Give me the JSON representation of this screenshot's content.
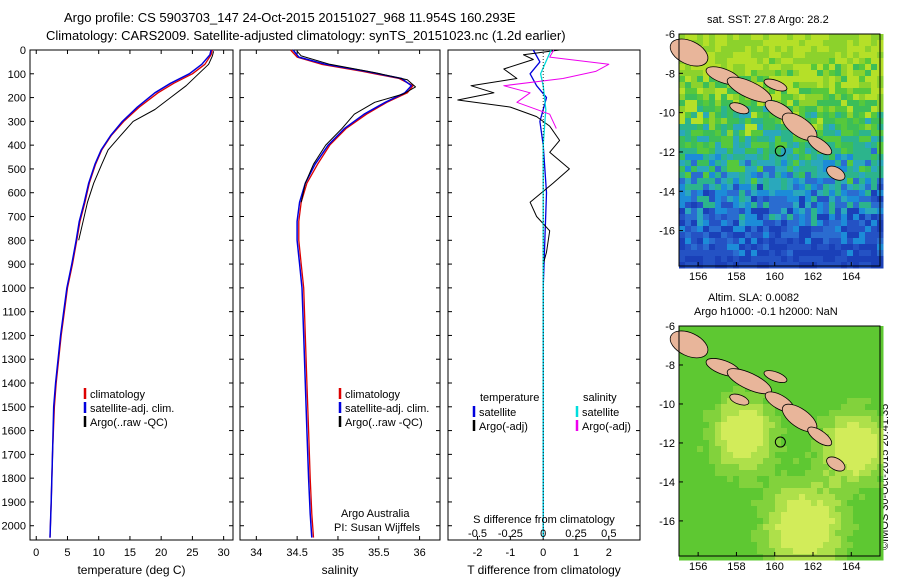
{
  "header": {
    "title_line1": "Argo profile: CS 5903703_147 24-Oct-2015 20151027_968 11.954S 160.293E",
    "title_line2": "Climatology: CARS2009. Satellite-adjusted climatology: synTS_20151023.nc (1.2d earlier)"
  },
  "colors": {
    "climatology": "#dd0000",
    "satellite": "#0000dd",
    "argo": "#000000",
    "satellite_salinity": "#00dddd",
    "argo_salinity_diff": "#ee00ee",
    "land": "#e8b59a"
  },
  "chart_data": [
    {
      "id": "temperature",
      "type": "line",
      "xlabel": "temperature (deg C)",
      "ylabel": "",
      "xlim": [
        -1,
        31.5
      ],
      "ylim": [
        2060,
        0
      ],
      "xticks": [
        0,
        5,
        10,
        15,
        20,
        25,
        30
      ],
      "xtick_labels": [
        "0",
        "5",
        "10",
        "15",
        "20",
        "25",
        "30"
      ],
      "yticks": [
        0,
        100,
        200,
        300,
        400,
        500,
        600,
        700,
        800,
        900,
        1000,
        1100,
        1200,
        1300,
        1400,
        1500,
        1600,
        1700,
        1800,
        1900,
        2000
      ],
      "legend": [
        "climatology",
        "satellite-adj. clim.",
        "Argo(..raw -QC)"
      ],
      "series": [
        {
          "name": "climatology",
          "color": "#dd0000",
          "width": 1.3,
          "x": [
            28.2,
            28.0,
            27.0,
            25.0,
            22.0,
            19.5,
            16.5,
            14.0,
            12.0,
            10.5,
            9.5,
            8.5,
            7.8,
            7.0,
            6.5,
            5.8,
            5.0,
            4.5,
            4.0,
            3.6,
            3.2,
            2.9,
            2.6,
            2.4,
            2.2
          ],
          "y": [
            0,
            20,
            60,
            100,
            140,
            180,
            240,
            300,
            360,
            420,
            480,
            560,
            640,
            720,
            800,
            900,
            1000,
            1100,
            1200,
            1300,
            1400,
            1500,
            1700,
            1900,
            2050
          ]
        },
        {
          "name": "satellite-adj. clim.",
          "color": "#0000dd",
          "width": 1.5,
          "x": [
            28.0,
            27.8,
            26.5,
            24.5,
            21.5,
            19.0,
            16.2,
            13.8,
            11.9,
            10.4,
            9.4,
            8.4,
            7.7,
            6.9,
            6.4,
            5.7,
            4.9,
            4.4,
            3.9,
            3.5,
            3.1,
            2.8,
            2.6,
            2.4,
            2.2
          ],
          "y": [
            0,
            20,
            60,
            100,
            140,
            180,
            240,
            300,
            360,
            420,
            480,
            560,
            640,
            720,
            800,
            900,
            1000,
            1100,
            1200,
            1300,
            1400,
            1500,
            1700,
            1900,
            2050
          ]
        },
        {
          "name": "Argo(..raw -QC)",
          "color": "#000000",
          "width": 1.0,
          "x": [
            28.4,
            28.2,
            27.6,
            26.0,
            24.0,
            21.5,
            19.0,
            15.5,
            13.5,
            11.5,
            10.5,
            9.2,
            8.2,
            7.5,
            6.8
          ],
          "y": [
            5,
            25,
            60,
            100,
            150,
            200,
            250,
            300,
            360,
            420,
            480,
            560,
            640,
            720,
            800
          ]
        }
      ],
      "legend_labels": [
        "climatology",
        "satellite-adj. clim.",
        "Argo(..raw -QC)"
      ]
    },
    {
      "id": "salinity",
      "type": "line",
      "xlabel": "salinity",
      "xlim": [
        33.8,
        36.25
      ],
      "ylim": [
        2060,
        0
      ],
      "xticks": [
        34,
        34.5,
        35,
        35.5,
        36
      ],
      "xtick_labels": [
        "34",
        "34.5",
        "35",
        "35.5",
        "36"
      ],
      "annotation_line1": "Argo Australia",
      "annotation_line2": "PI: Susan Wijffels",
      "legend_labels": [
        "climatology",
        "satellite-adj. clim.",
        "Argo(..raw -QC)"
      ],
      "series": [
        {
          "name": "climatology",
          "color": "#dd0000",
          "width": 1.3,
          "x": [
            34.42,
            34.5,
            34.8,
            35.3,
            35.75,
            35.92,
            35.85,
            35.6,
            35.35,
            35.1,
            34.9,
            34.75,
            34.62,
            34.55,
            34.52,
            34.52,
            34.55,
            34.58,
            34.6,
            34.62,
            34.64,
            34.66,
            34.68,
            34.7
          ],
          "y": [
            0,
            30,
            60,
            90,
            120,
            150,
            180,
            220,
            270,
            330,
            400,
            480,
            560,
            640,
            720,
            800,
            900,
            1000,
            1200,
            1400,
            1600,
            1800,
            1950,
            2050
          ]
        },
        {
          "name": "satellite-adj. clim.",
          "color": "#0000dd",
          "width": 1.5,
          "x": [
            34.45,
            34.52,
            34.85,
            35.35,
            35.78,
            35.9,
            35.82,
            35.58,
            35.32,
            35.08,
            34.88,
            34.72,
            34.6,
            34.53,
            34.5,
            34.5,
            34.53,
            34.56,
            34.58,
            34.6,
            34.62,
            34.64,
            34.66,
            34.68
          ],
          "y": [
            0,
            30,
            60,
            90,
            120,
            150,
            180,
            220,
            270,
            330,
            400,
            480,
            560,
            640,
            720,
            800,
            900,
            1000,
            1200,
            1400,
            1600,
            1800,
            1950,
            2050
          ]
        },
        {
          "name": "Argo(..raw -QC)",
          "color": "#000000",
          "width": 1.0,
          "x": [
            34.5,
            34.55,
            34.9,
            35.45,
            35.85,
            35.95,
            35.8,
            35.45,
            35.2,
            35.05,
            34.85,
            34.7,
            34.6,
            34.55
          ],
          "y": [
            5,
            25,
            60,
            95,
            125,
            155,
            185,
            220,
            270,
            330,
            400,
            480,
            560,
            640
          ]
        }
      ]
    },
    {
      "id": "difference",
      "type": "line",
      "xlabel": "T difference from climatology",
      "top_label": "S difference from climatology",
      "xlim": [
        -2.9,
        2.95
      ],
      "ylim": [
        2060,
        0
      ],
      "xticks": [
        -2,
        -1,
        0,
        1,
        2
      ],
      "xtick_labels": [
        "-2",
        "-1",
        "0",
        "1",
        "2"
      ],
      "top_ticks": [
        -0.5,
        -0.25,
        0,
        0.25,
        0.5
      ],
      "top_tick_labels": [
        "-0.5",
        "-0.25",
        "0",
        "0.25",
        "0.5"
      ],
      "legend_titles": [
        "temperature",
        "salinity"
      ],
      "legend_left_labels": [
        "satellite",
        "Argo(-adj)"
      ],
      "legend_right_labels": [
        "satellite",
        "Argo(-adj)"
      ],
      "series": [
        {
          "name": "T satellite",
          "color": "#0000dd",
          "width": 1.3,
          "x": [
            -0.3,
            -0.1,
            -0.4,
            -0.2,
            0.1,
            -0.1,
            0.0,
            0.1,
            0.0,
            0.0,
            0.0
          ],
          "y": [
            0,
            50,
            100,
            150,
            200,
            300,
            400,
            600,
            1000,
            1500,
            2050
          ]
        },
        {
          "name": "T Argo(-adj)",
          "color": "#000000",
          "width": 1.0,
          "x": [
            0.5,
            -0.6,
            -0.3,
            -1.2,
            -0.8,
            -2.2,
            -1.5,
            -2.6,
            -1.0,
            -0.2,
            0.2,
            0.5,
            0.2,
            0.8,
            0.3,
            -0.4,
            -0.2,
            0.2,
            0.1,
            0.0
          ],
          "y": [
            0,
            20,
            40,
            80,
            120,
            150,
            180,
            210,
            240,
            280,
            320,
            380,
            430,
            500,
            560,
            640,
            700,
            760,
            850,
            900
          ]
        },
        {
          "name": "S satellite",
          "color": "#00dddd",
          "width": 1.3,
          "x": [
            0.06,
            0.02,
            -0.02,
            0.0,
            0.02,
            0.0,
            0.0,
            0.0,
            0.0
          ],
          "y": [
            0,
            50,
            100,
            150,
            250,
            400,
            700,
            1200,
            2050
          ]
        },
        {
          "name": "S Argo(-adj)",
          "color": "#ee00ee",
          "width": 1.0,
          "x": [
            0.08,
            0.05,
            0.5,
            0.4,
            0.15,
            -0.3,
            -0.1,
            -0.2,
            0.05,
            0.1
          ],
          "y": [
            0,
            30,
            60,
            90,
            120,
            150,
            180,
            220,
            270,
            330
          ]
        }
      ]
    }
  ],
  "maps": {
    "sst": {
      "title": "sat. SST: 27.8 Argo: 28.2",
      "xticks": [
        "156",
        "158",
        "160",
        "162",
        "164"
      ],
      "yticks": [
        "-6",
        "-8",
        "-10",
        "-12",
        "-14",
        "-16"
      ]
    },
    "sla": {
      "title_line1": "Altim. SLA: 0.0082",
      "title_line2": "Argo h1000: -0.1 h2000: NaN",
      "xticks": [
        "156",
        "158",
        "160",
        "162",
        "164"
      ],
      "yticks": [
        "-6",
        "-8",
        "-10",
        "-12",
        "-14",
        "-16"
      ]
    }
  },
  "credit": "©IMOS 30-Oct-2015 20:41:35"
}
